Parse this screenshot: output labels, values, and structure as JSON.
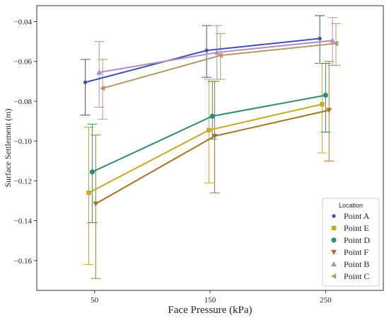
{
  "chart_data": {
    "type": "line",
    "xlabel": "Face Pressure (kPa)",
    "ylabel": "Surface Settlement (m)",
    "categories": [
      "50",
      "150",
      "250"
    ],
    "x": [
      50,
      150,
      250
    ],
    "xlim": [
      0,
      300
    ],
    "ylim": [
      -0.175,
      -0.032
    ],
    "yticks": [
      -0.04,
      -0.06,
      -0.08,
      -0.1,
      -0.12,
      -0.14,
      -0.16
    ],
    "ytick_labels": [
      "−0.04",
      "−0.06",
      "−0.08",
      "−0.10",
      "−0.12",
      "−0.14",
      "−0.16"
    ],
    "grid": false,
    "legend": {
      "title": "Location",
      "placement": "lower-right"
    },
    "series": [
      {
        "name": "Point A",
        "marker": "circle-small",
        "color": "#3f4fb5",
        "x": [
          42,
          147,
          245
        ],
        "y": [
          -0.0705,
          -0.0545,
          -0.0485
        ],
        "err_low": [
          -0.087,
          -0.068,
          -0.061
        ],
        "err_high": [
          -0.059,
          -0.042,
          -0.037
        ]
      },
      {
        "name": "Point E",
        "marker": "square",
        "color": "#c9a91f",
        "x": [
          45,
          149,
          247
        ],
        "y": [
          -0.126,
          -0.0945,
          -0.0815
        ],
        "err_low": [
          -0.162,
          -0.121,
          -0.106
        ],
        "err_high": [
          -0.093,
          -0.069,
          -0.061
        ]
      },
      {
        "name": "Point D",
        "marker": "circle",
        "color": "#2d8c76",
        "x": [
          48,
          152,
          250
        ],
        "y": [
          -0.1155,
          -0.0875,
          -0.077
        ],
        "err_low": [
          -0.141,
          -0.099,
          -0.0955
        ],
        "err_high": [
          -0.0915,
          -0.07,
          -0.061
        ]
      },
      {
        "name": "Point F",
        "marker": "triangle-down",
        "color": "#a9741f",
        "x": [
          51,
          154,
          253
        ],
        "y": [
          -0.1315,
          -0.0975,
          -0.0845
        ],
        "err_low": [
          -0.169,
          -0.126,
          -0.11
        ],
        "err_high": [
          -0.097,
          -0.07,
          -0.06
        ]
      },
      {
        "name": "Point B",
        "marker": "triangle-up",
        "color": "#b28ac4",
        "x": [
          54,
          156,
          256
        ],
        "y": [
          -0.0655,
          -0.0555,
          -0.0495
        ],
        "err_low": [
          -0.083,
          -0.069,
          -0.062
        ],
        "err_high": [
          -0.05,
          -0.042,
          -0.038
        ]
      },
      {
        "name": "Point C",
        "marker": "triangle-left",
        "color": "#b59966",
        "x": [
          57,
          159,
          259
        ],
        "y": [
          -0.0735,
          -0.057,
          -0.051
        ],
        "err_low": [
          -0.089,
          -0.069,
          -0.062
        ],
        "err_high": [
          -0.059,
          -0.046,
          -0.041
        ]
      }
    ]
  }
}
